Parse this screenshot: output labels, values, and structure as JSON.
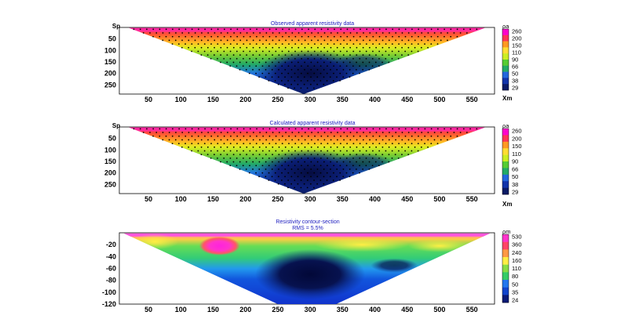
{
  "chart_data": [
    {
      "type": "heatmap",
      "title": "Observed apparent resistivity data",
      "ylabel": "Sp",
      "xlabel": "Xm",
      "x_ticks": [
        50,
        100,
        150,
        200,
        250,
        300,
        350,
        400,
        450,
        500,
        550
      ],
      "y_ticks": [
        50,
        100,
        150,
        200,
        250
      ],
      "xlim": [
        5,
        585
      ],
      "ylim": [
        0,
        290
      ],
      "colorbar_label": "ρa",
      "colorbar_ticks": [
        "260",
        "200",
        "150",
        "110",
        "90",
        "66",
        "50",
        "38",
        "29"
      ],
      "section_shape": "inverted triangle, surface 20–570 m, apex ~290 m at x≈290",
      "low_resistivity_zone": {
        "x": 280,
        "y": 230,
        "value": 29
      },
      "surface_high": {
        "value": 260
      },
      "grid": false
    },
    {
      "type": "heatmap",
      "title": "Calculated apparent resistivity data",
      "ylabel": "Sp",
      "xlabel": "Xm",
      "x_ticks": [
        50,
        100,
        150,
        200,
        250,
        300,
        350,
        400,
        450,
        500,
        550
      ],
      "y_ticks": [
        50,
        100,
        150,
        200,
        250
      ],
      "xlim": [
        5,
        585
      ],
      "ylim": [
        0,
        290
      ],
      "colorbar_label": "ρa",
      "colorbar_ticks": [
        "260",
        "200",
        "150",
        "110",
        "90",
        "66",
        "50",
        "38",
        "29"
      ],
      "section_shape": "inverted triangle, surface 20–570 m, apex ~290 m at x≈290",
      "grid": false
    },
    {
      "type": "heatmap",
      "title": "Resistivity contour-section",
      "subtitle": "RMS = 5.5%",
      "x_ticks": [
        50,
        100,
        150,
        200,
        250,
        300,
        350,
        400,
        450,
        500,
        550
      ],
      "y_ticks": [
        -20,
        -40,
        -60,
        -80,
        -100,
        -120
      ],
      "xlim": [
        5,
        585
      ],
      "ylim": [
        -120,
        0
      ],
      "colorbar_label": "ρm",
      "colorbar_ticks": [
        "530",
        "360",
        "240",
        "160",
        "110",
        "80",
        "50",
        "35",
        "24"
      ],
      "anomalies": [
        {
          "kind": "high",
          "x": 160,
          "y": -22,
          "value": 530
        },
        {
          "kind": "low",
          "x": 300,
          "y": -70,
          "value": 24
        }
      ],
      "grid": false
    }
  ],
  "palettes": {
    "apparent": [
      "#ff00cc",
      "#ff3355",
      "#ff9922",
      "#ffdd33",
      "#ccee22",
      "#55cc33",
      "#22aa66",
      "#2266dd",
      "#1133aa",
      "#0a1a66"
    ],
    "model": [
      "#ff33cc",
      "#ff4466",
      "#ff9944",
      "#ffee44",
      "#88dd44",
      "#33cc66",
      "#2277ee",
      "#1144cc",
      "#0a1a77"
    ]
  }
}
